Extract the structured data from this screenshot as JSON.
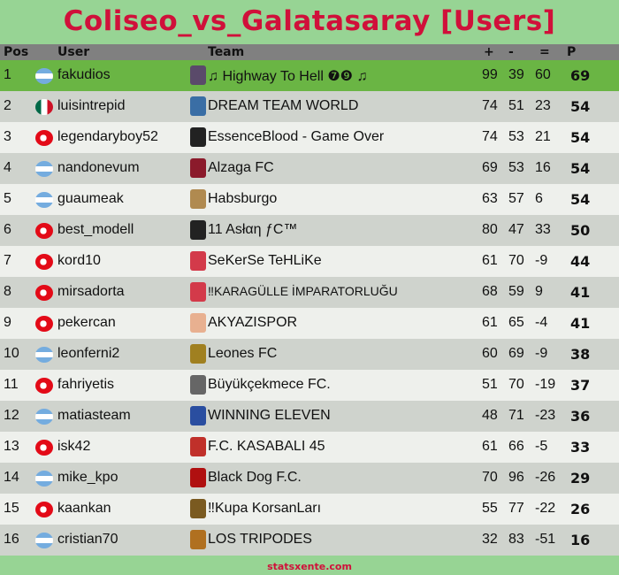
{
  "title": "Coliseo_vs_Galatasaray [Users]",
  "headers": {
    "pos": "Pos",
    "user": "User",
    "team": "Team",
    "w": "+",
    "l": "-",
    "d": "=",
    "p": "P"
  },
  "colors": {
    "title": "#d0103a",
    "leader_row": "#6ab544",
    "background": "#97d494"
  },
  "rows": [
    {
      "pos": "1",
      "flag": "argentina",
      "user": "fakudios",
      "team": "♫ Highway To Hell ❼❾ ♫",
      "w": "99",
      "l": "39",
      "d": "60",
      "p": "69"
    },
    {
      "pos": "2",
      "flag": "mexico",
      "user": "luisintrepid",
      "team": "DREAM TEAM WORLD",
      "w": "74",
      "l": "51",
      "d": "23",
      "p": "54"
    },
    {
      "pos": "3",
      "flag": "turkey",
      "user": "legendaryboy52",
      "team": "EssenceBlood - Game Over",
      "w": "74",
      "l": "53",
      "d": "21",
      "p": "54"
    },
    {
      "pos": "4",
      "flag": "argentina",
      "user": "nandonevum",
      "team": "Alzaga FC",
      "w": "69",
      "l": "53",
      "d": "16",
      "p": "54"
    },
    {
      "pos": "5",
      "flag": "argentina",
      "user": "guaumeak",
      "team": "Habsburgo",
      "w": "63",
      "l": "57",
      "d": "6",
      "p": "54"
    },
    {
      "pos": "6",
      "flag": "turkey",
      "user": "best_modell",
      "team": "11 Asłαη ƒC™",
      "w": "80",
      "l": "47",
      "d": "33",
      "p": "50"
    },
    {
      "pos": "7",
      "flag": "turkey",
      "user": "kord10",
      "team": "SeKerSe TeHLiKe",
      "w": "61",
      "l": "70",
      "d": "-9",
      "p": "44"
    },
    {
      "pos": "8",
      "flag": "turkey",
      "user": "mirsadorta",
      "team": "‼KARAGÜLLE İMPARATORLUĞU",
      "w": "68",
      "l": "59",
      "d": "9",
      "p": "41"
    },
    {
      "pos": "9",
      "flag": "turkey",
      "user": "pekercan",
      "team": "AKYAZISPOR",
      "w": "61",
      "l": "65",
      "d": "-4",
      "p": "41"
    },
    {
      "pos": "10",
      "flag": "argentina",
      "user": "leonferni2",
      "team": "Leones FC",
      "w": "60",
      "l": "69",
      "d": "-9",
      "p": "38"
    },
    {
      "pos": "11",
      "flag": "turkey",
      "user": "fahriyetis",
      "team": "Büyükçekmece FC.",
      "w": "51",
      "l": "70",
      "d": "-19",
      "p": "37"
    },
    {
      "pos": "12",
      "flag": "argentina",
      "user": "matiasteam",
      "team": "WINNING ELEVEN",
      "w": "48",
      "l": "71",
      "d": "-23",
      "p": "36"
    },
    {
      "pos": "13",
      "flag": "turkey",
      "user": "isk42",
      "team": "F.C.  KASABALI  45",
      "w": "61",
      "l": "66",
      "d": "-5",
      "p": "33"
    },
    {
      "pos": "14",
      "flag": "argentina",
      "user": "mike_kpo",
      "team": "Black Dog F.C.",
      "w": "70",
      "l": "96",
      "d": "-26",
      "p": "29"
    },
    {
      "pos": "15",
      "flag": "turkey",
      "user": "kaankan",
      "team": "‼Kupa KorsanLarı",
      "w": "55",
      "l": "77",
      "d": "-22",
      "p": "26"
    },
    {
      "pos": "16",
      "flag": "argentina",
      "user": "cristian70",
      "team": "LOS TRIPODES",
      "w": "32",
      "l": "83",
      "d": "-51",
      "p": "16"
    }
  ],
  "footer": "statsxente.com"
}
